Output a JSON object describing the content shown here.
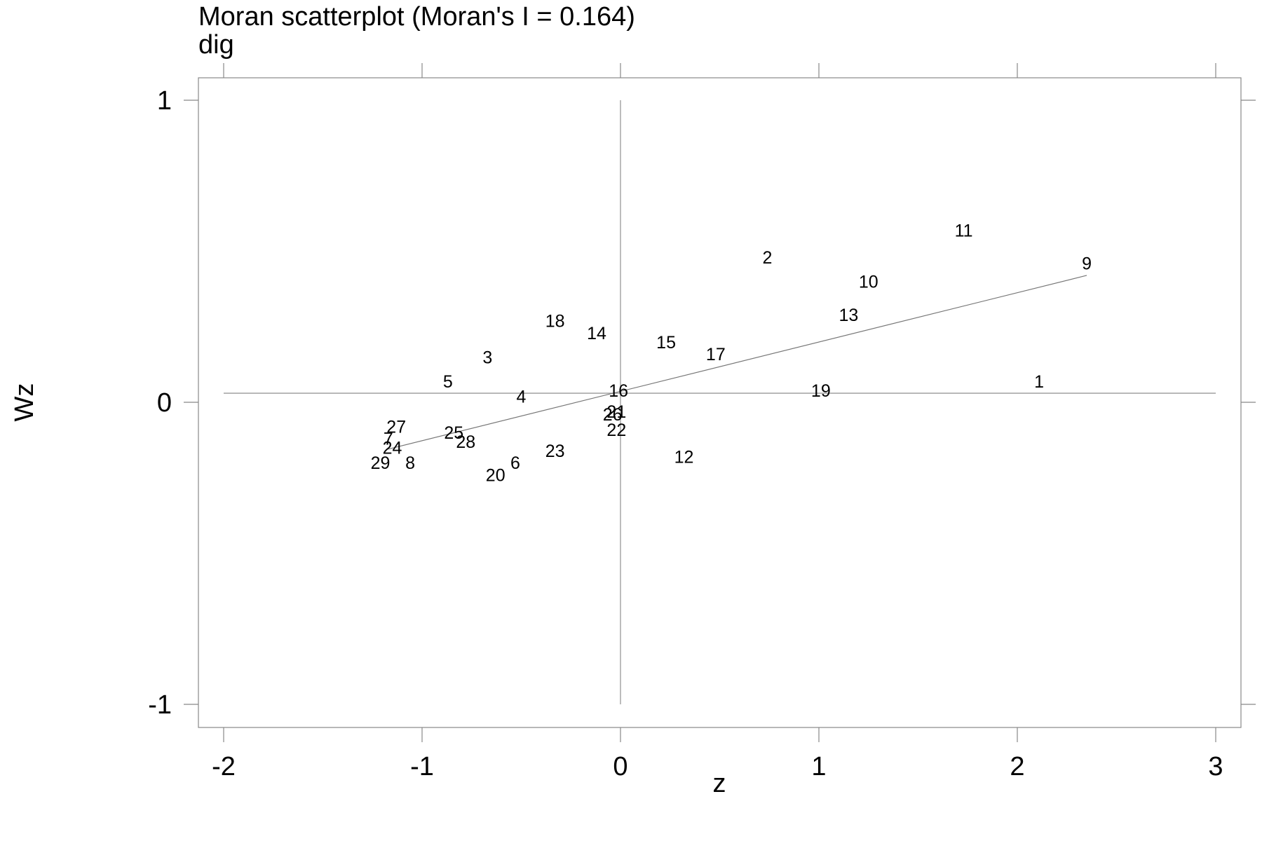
{
  "chart_data": {
    "type": "scatter",
    "title": "Moran scatterplot (Moran's I = 0.164)",
    "subtitle": "dig",
    "xlabel": "z",
    "ylabel": "Wz",
    "xlim": [
      -2,
      3
    ],
    "ylim": [
      -1,
      1
    ],
    "x_ticks": [
      -2,
      -1,
      0,
      1,
      2,
      3
    ],
    "y_ticks": [
      -1,
      0,
      1
    ],
    "grid": false,
    "reference_lines": {
      "x": 0,
      "y": 0.03
    },
    "regression_line": {
      "x": [
        -1.17,
        2.35
      ],
      "y": [
        -0.155,
        0.42
      ]
    },
    "points": [
      {
        "label": "1",
        "x": 2.11,
        "y": 0.07
      },
      {
        "label": "2",
        "x": 0.74,
        "y": 0.48
      },
      {
        "label": "3",
        "x": -0.67,
        "y": 0.15
      },
      {
        "label": "4",
        "x": -0.5,
        "y": 0.02
      },
      {
        "label": "5",
        "x": -0.87,
        "y": 0.07
      },
      {
        "label": "6",
        "x": -0.53,
        "y": -0.2
      },
      {
        "label": "7",
        "x": -1.17,
        "y": -0.12
      },
      {
        "label": "8",
        "x": -1.06,
        "y": -0.2
      },
      {
        "label": "9",
        "x": 2.35,
        "y": 0.46
      },
      {
        "label": "10",
        "x": 1.25,
        "y": 0.4
      },
      {
        "label": "11",
        "x": 1.73,
        "y": 0.57
      },
      {
        "label": "12",
        "x": 0.32,
        "y": -0.18
      },
      {
        "label": "13",
        "x": 1.15,
        "y": 0.29
      },
      {
        "label": "14",
        "x": -0.12,
        "y": 0.23
      },
      {
        "label": "15",
        "x": 0.23,
        "y": 0.2
      },
      {
        "label": "16",
        "x": -0.01,
        "y": 0.04
      },
      {
        "label": "17",
        "x": 0.48,
        "y": 0.16
      },
      {
        "label": "18",
        "x": -0.33,
        "y": 0.27
      },
      {
        "label": "19",
        "x": 1.01,
        "y": 0.04
      },
      {
        "label": "20",
        "x": -0.63,
        "y": -0.24
      },
      {
        "label": "21",
        "x": -0.02,
        "y": -0.03
      },
      {
        "label": "22",
        "x": -0.02,
        "y": -0.09
      },
      {
        "label": "23",
        "x": -0.33,
        "y": -0.16
      },
      {
        "label": "24",
        "x": -1.15,
        "y": -0.15
      },
      {
        "label": "25",
        "x": -0.84,
        "y": -0.1
      },
      {
        "label": "26",
        "x": -0.04,
        "y": -0.04
      },
      {
        "label": "27",
        "x": -1.13,
        "y": -0.08
      },
      {
        "label": "28",
        "x": -0.78,
        "y": -0.13
      },
      {
        "label": "29",
        "x": -1.21,
        "y": -0.2
      }
    ]
  }
}
